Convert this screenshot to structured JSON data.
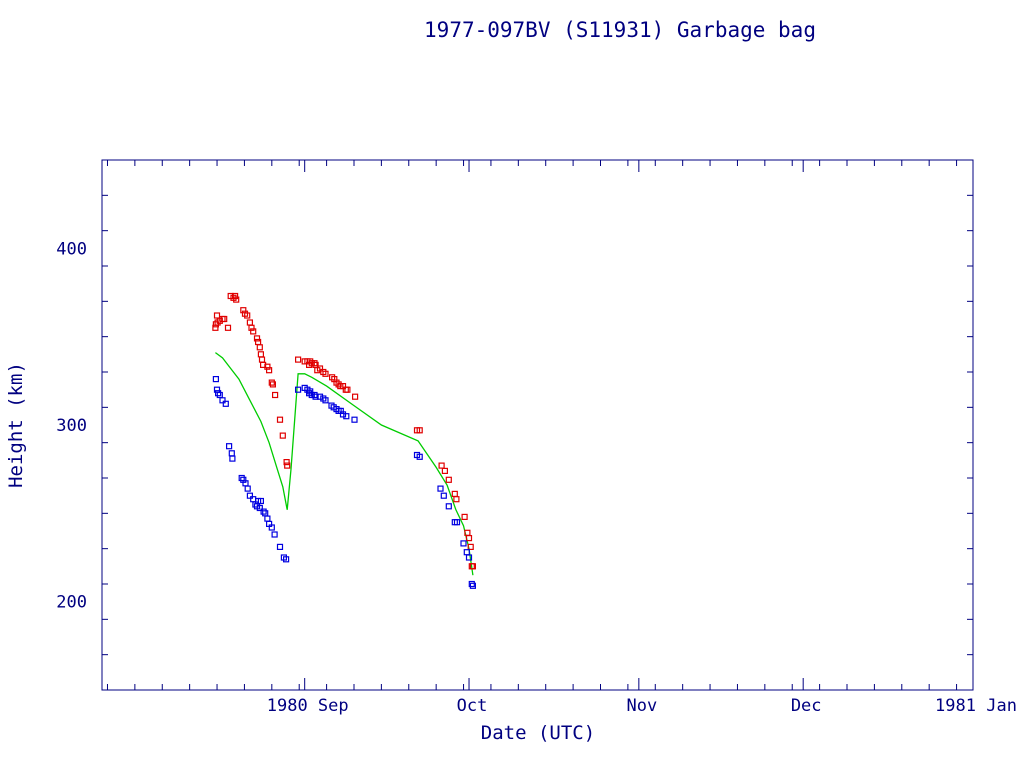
{
  "chart_data": {
    "type": "scatter",
    "title": "1977-097BV (S11931) Garbage bag",
    "xlabel": "Date (UTC)",
    "ylabel": "Height (km)",
    "ylim": [
      150,
      450
    ],
    "y_major_ticks": [
      200,
      300,
      400
    ],
    "y_minor_step": 20,
    "xlim_days_from_1980_08_01": [
      -6,
      153
    ],
    "x_ticks": [
      {
        "label": "1980 Sep",
        "day": 31
      },
      {
        "label": "Oct",
        "day": 61
      },
      {
        "label": "Nov",
        "day": 92
      },
      {
        "label": "Dec",
        "day": 122
      },
      {
        "label": "1981 Jan",
        "day": 153
      }
    ],
    "x_minor_step_days": 5,
    "x_unit": "days from 1980-08-01",
    "colors": {
      "axis": "#000080",
      "apogee": "#e00000",
      "perigee": "#0000e0",
      "mean": "#00cc00"
    },
    "series": [
      {
        "name": "apogee",
        "mark": "square",
        "points": [
          [
            14.7,
            355
          ],
          [
            14.8,
            357
          ],
          [
            15.0,
            362
          ],
          [
            15.1,
            358
          ],
          [
            15.5,
            359
          ],
          [
            16.0,
            360
          ],
          [
            16.3,
            360
          ],
          [
            17.0,
            355
          ],
          [
            17.5,
            373
          ],
          [
            18.0,
            372
          ],
          [
            18.3,
            373
          ],
          [
            18.5,
            371
          ],
          [
            19.8,
            365
          ],
          [
            20.1,
            363
          ],
          [
            20.5,
            362
          ],
          [
            21.0,
            358
          ],
          [
            21.3,
            355
          ],
          [
            21.6,
            353
          ],
          [
            22.3,
            349
          ],
          [
            22.5,
            347
          ],
          [
            22.8,
            344
          ],
          [
            23.0,
            340
          ],
          [
            23.2,
            337
          ],
          [
            23.4,
            334
          ],
          [
            24.2,
            333
          ],
          [
            24.5,
            331
          ],
          [
            25.0,
            324
          ],
          [
            25.2,
            323
          ],
          [
            25.6,
            317
          ],
          [
            26.5,
            303
          ],
          [
            27.0,
            294
          ],
          [
            27.7,
            279
          ],
          [
            27.8,
            277
          ],
          [
            29.8,
            337
          ],
          [
            31.0,
            336
          ],
          [
            31.5,
            336
          ],
          [
            31.8,
            334
          ],
          [
            32.0,
            336
          ],
          [
            32.3,
            335
          ],
          [
            32.8,
            335
          ],
          [
            33.0,
            334
          ],
          [
            33.3,
            331
          ],
          [
            33.8,
            332
          ],
          [
            34.4,
            330
          ],
          [
            34.8,
            329
          ],
          [
            36.0,
            327
          ],
          [
            36.4,
            326
          ],
          [
            36.8,
            324
          ],
          [
            37.2,
            323
          ],
          [
            37.5,
            322
          ],
          [
            38.0,
            322
          ],
          [
            38.5,
            320
          ],
          [
            38.8,
            320
          ],
          [
            40.2,
            316
          ],
          [
            51.5,
            297
          ],
          [
            52.0,
            297
          ],
          [
            56.0,
            277
          ],
          [
            56.6,
            274
          ],
          [
            57.3,
            269
          ],
          [
            58.4,
            261
          ],
          [
            58.7,
            258
          ],
          [
            60.2,
            248
          ],
          [
            60.7,
            239
          ],
          [
            61.0,
            236
          ],
          [
            61.3,
            231
          ],
          [
            61.5,
            220
          ],
          [
            61.7,
            220
          ]
        ]
      },
      {
        "name": "perigee",
        "mark": "square",
        "points": [
          [
            14.8,
            326
          ],
          [
            15.0,
            320
          ],
          [
            15.2,
            318
          ],
          [
            15.5,
            317
          ],
          [
            16.0,
            314
          ],
          [
            16.6,
            312
          ],
          [
            17.2,
            288
          ],
          [
            17.7,
            284
          ],
          [
            17.8,
            281
          ],
          [
            19.5,
            270
          ],
          [
            19.8,
            269
          ],
          [
            20.2,
            267
          ],
          [
            20.6,
            264
          ],
          [
            21.0,
            260
          ],
          [
            21.6,
            258
          ],
          [
            22.0,
            255
          ],
          [
            22.3,
            254
          ],
          [
            22.5,
            257
          ],
          [
            22.8,
            253
          ],
          [
            23.0,
            257
          ],
          [
            23.5,
            251
          ],
          [
            23.8,
            250
          ],
          [
            24.2,
            247
          ],
          [
            24.5,
            244
          ],
          [
            25.0,
            242
          ],
          [
            25.5,
            238
          ],
          [
            26.5,
            231
          ],
          [
            27.2,
            225
          ],
          [
            27.6,
            224
          ],
          [
            29.8,
            320
          ],
          [
            31.0,
            321
          ],
          [
            31.5,
            320
          ],
          [
            31.8,
            318
          ],
          [
            32.0,
            319
          ],
          [
            32.3,
            317
          ],
          [
            32.8,
            317
          ],
          [
            33.0,
            316
          ],
          [
            33.8,
            316
          ],
          [
            34.4,
            315
          ],
          [
            34.8,
            314
          ],
          [
            35.9,
            311
          ],
          [
            36.3,
            310
          ],
          [
            36.8,
            309
          ],
          [
            37.2,
            308
          ],
          [
            37.6,
            308
          ],
          [
            38.0,
            306
          ],
          [
            38.6,
            305
          ],
          [
            40.1,
            303
          ],
          [
            51.5,
            283
          ],
          [
            52.0,
            282
          ],
          [
            55.8,
            264
          ],
          [
            56.4,
            260
          ],
          [
            57.3,
            254
          ],
          [
            58.4,
            245
          ],
          [
            58.8,
            245
          ],
          [
            60.0,
            233
          ],
          [
            60.6,
            228
          ],
          [
            61.0,
            225
          ],
          [
            61.5,
            210
          ],
          [
            61.7,
            209
          ]
        ]
      },
      {
        "name": "mean",
        "mark": "line",
        "points": [
          [
            14.7,
            341
          ],
          [
            16.0,
            338
          ],
          [
            17.5,
            332
          ],
          [
            19.0,
            326
          ],
          [
            21.0,
            314
          ],
          [
            23.0,
            302
          ],
          [
            24.5,
            290
          ],
          [
            26.0,
            275
          ],
          [
            27.0,
            265
          ],
          [
            27.8,
            252
          ],
          [
            28.5,
            275
          ],
          [
            29.8,
            329
          ],
          [
            31.0,
            329
          ],
          [
            32.3,
            327
          ],
          [
            35.0,
            322
          ],
          [
            40.0,
            311
          ],
          [
            45.0,
            300
          ],
          [
            51.7,
            291
          ],
          [
            55.0,
            276
          ],
          [
            57.0,
            266
          ],
          [
            58.6,
            252
          ],
          [
            60.0,
            243
          ],
          [
            61.0,
            230
          ],
          [
            61.7,
            215
          ]
        ]
      }
    ]
  }
}
